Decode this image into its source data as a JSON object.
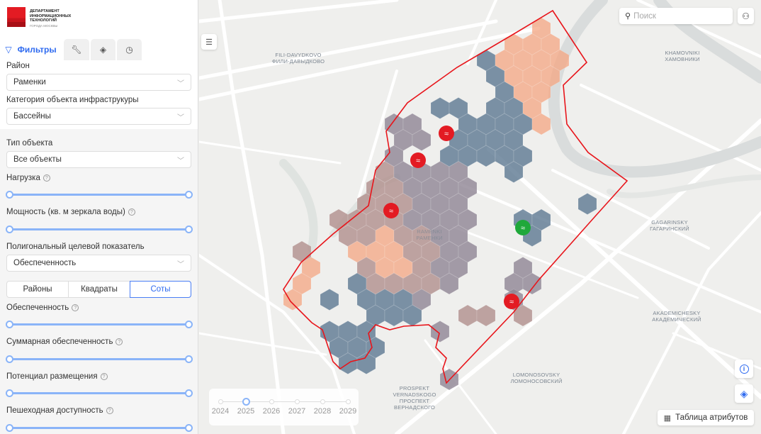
{
  "logo": {
    "lines": [
      "ДЕПАРТАМЕНТ",
      "ИНФОРМАЦИОННЫХ",
      "ТЕХНОЛОГИЙ"
    ],
    "sub": "ГОРОДА МОСКВЫ"
  },
  "tabs": [
    {
      "label": "Фильтры",
      "icon": "filter-icon"
    },
    {
      "icon": "wrench-icon"
    },
    {
      "icon": "layers-icon"
    },
    {
      "icon": "history-icon"
    }
  ],
  "filters": {
    "district": {
      "label": "Район",
      "value": "Раменки"
    },
    "category": {
      "label": "Категория объекта инфраструкуры",
      "value": "Бассейны"
    },
    "object_type": {
      "label": "Тип объекта",
      "value": "Все объекты"
    },
    "load": {
      "label": "Нагрузка",
      "range": [
        0,
        1
      ]
    },
    "capacity": {
      "label": "Мощность (кв. м зеркала воды)",
      "range": [
        0,
        1
      ]
    },
    "polygon_metric": {
      "label": "Полигональный целевой показатель",
      "value": "Обеспеченность"
    },
    "grid_modes": [
      "Районы",
      "Квадраты",
      "Соты"
    ],
    "grid_mode_selected": "Соты",
    "provision": {
      "label": "Обеспеченность",
      "range": [
        0,
        1
      ]
    },
    "total_provision": {
      "label": "Суммарная обеспеченность",
      "range": [
        0,
        1
      ]
    },
    "placement_potential": {
      "label": "Потенциал размещения",
      "range": [
        0,
        1
      ]
    },
    "walk_access": {
      "label": "Пешеходная доступность",
      "range": [
        0,
        1
      ]
    }
  },
  "map": {
    "search_placeholder": "Поиск",
    "attributes_table": "Таблица атрибутов",
    "timeline": {
      "years": [
        "2024",
        "2025",
        "2026",
        "2027",
        "2028",
        "2029"
      ],
      "selected": "2025"
    },
    "labels": [
      {
        "en": "FILI-DAVYDKOVO",
        "ru": "ФИЛИ-ДАВЫДКОВО"
      },
      {
        "en": "KHAMOVNIKI",
        "ru": "ХАМОВНИКИ"
      },
      {
        "en": "RAMENKI",
        "ru": "РАМЕНКИ"
      },
      {
        "en": "GAGARINSKY",
        "ru": "ГАГАРИНСКИЙ"
      },
      {
        "en": "AKADEMICHESKY",
        "ru": "АКАДЕМИЧЕСКИЙ"
      },
      {
        "en": "LOMONOSOVSKY",
        "ru": "ЛОМОНОСОВСКИЙ"
      },
      {
        "en": "PROSPEKT VERNADSKOGO",
        "ru": "ПРОСПЕКТ ВЕРНАДСКОГО"
      }
    ],
    "colors": {
      "accent": "#2f6bf0",
      "boundary": "#e8151b",
      "hex_low": "#5d7891",
      "hex_mid": "#8f8594",
      "hex_mix": "#b08f8c",
      "hex_high": "#f4a582",
      "pin_red": "#e31b23",
      "pin_green": "#1fa83a"
    }
  }
}
